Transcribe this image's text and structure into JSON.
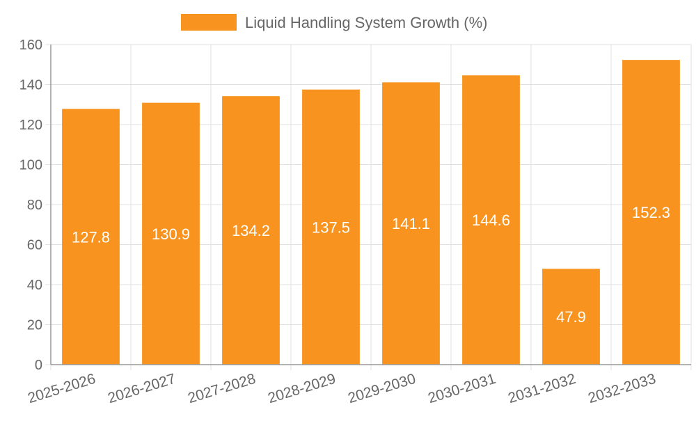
{
  "chart_data": {
    "type": "bar",
    "title": "",
    "legend": {
      "label": "Liquid Handling System Growth (%)",
      "position": "top-center"
    },
    "categories": [
      "2025-2026",
      "2026-2027",
      "2027-2028",
      "2028-2029",
      "2029-2030",
      "2030-2031",
      "2031-2032",
      "2032-2033"
    ],
    "series": [
      {
        "name": "Liquid Handling System Growth (%)",
        "values": [
          127.8,
          130.9,
          134.2,
          137.5,
          141.1,
          144.6,
          47.9,
          152.3
        ],
        "value_labels": [
          "127.8",
          "130.9",
          "134.2",
          "137.5",
          "141.1",
          "144.6",
          "47.9",
          "152.3"
        ]
      }
    ],
    "xlabel": "",
    "ylabel": "",
    "ylim": [
      0,
      160
    ],
    "yticks": [
      0,
      20,
      40,
      60,
      80,
      100,
      120,
      140,
      160
    ],
    "ytick_labels": [
      "0",
      "20",
      "40",
      "60",
      "80",
      "100",
      "120",
      "140",
      "160"
    ],
    "grid": true,
    "colors": {
      "bar": "#F7931E",
      "label": "#ffffff",
      "grid": "#e0e0e0",
      "axis": "#999999",
      "tick_text": "#666666"
    }
  }
}
